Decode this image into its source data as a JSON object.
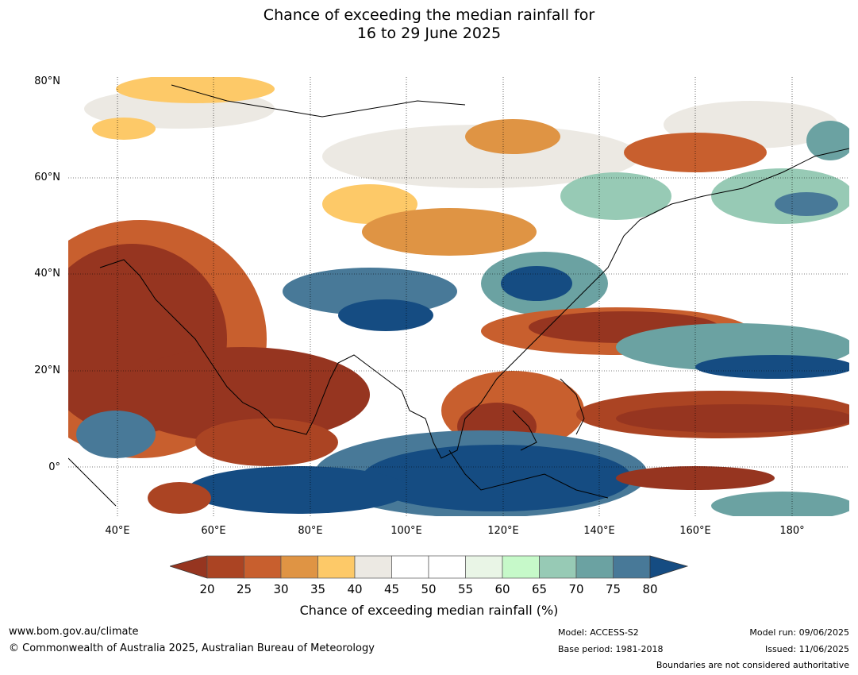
{
  "title": {
    "line1": "Chance of exceeding the median rainfall for",
    "line2": "16 to 29 June 2025"
  },
  "map": {
    "lat_labels": [
      "80°N",
      "60°N",
      "40°N",
      "20°N",
      "0°"
    ],
    "lon_labels": [
      "40°E",
      "60°E",
      "80°E",
      "100°E",
      "120°E",
      "140°E",
      "160°E",
      "180°"
    ],
    "extent": {
      "lon_min": 30,
      "lon_max": 192,
      "lat_min": -10,
      "lat_max": 81
    }
  },
  "colorbar": {
    "label": "Chance of exceeding median rainfall (%)",
    "ticks": [
      "20",
      "25",
      "30",
      "35",
      "40",
      "45",
      "50",
      "55",
      "60",
      "65",
      "70",
      "75",
      "80"
    ],
    "colors": [
      "#ab4423",
      "#c85f2e",
      "#df9444",
      "#fdc968",
      "#ece9e3",
      "#ffffff",
      "#ffffff",
      "#e9f5e6",
      "#c6f9c9",
      "#97cab5",
      "#6ba2a2",
      "#487998"
    ],
    "under_color": "#963520",
    "over_color": "#154c82"
  },
  "footer": {
    "url": "www.bom.gov.au/climate",
    "copyright": "© Commonwealth of Australia 2025, Australian Bureau of Meteorology",
    "model": "Model: ACCESS-S2",
    "base_period": "Base period: 1981-2018",
    "model_run": "Model run: 09/06/2025",
    "issued": "Issued: 11/06/2025",
    "disclaimer": "Boundaries are not considered authoritative"
  }
}
